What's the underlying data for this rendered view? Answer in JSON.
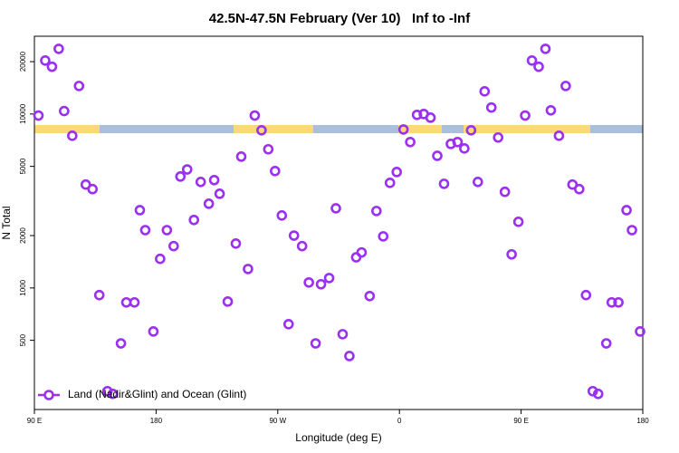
{
  "chart_data": {
    "type": "scatter",
    "title": "42.5N-47.5N February (Ver 10)   Inf to -Inf",
    "xlabel": "Longitude (deg E)",
    "ylabel": "N Total",
    "xlim": [
      90,
      540
    ],
    "xticks": [
      {
        "value": 90,
        "label": "90 E"
      },
      180,
      {
        "value": 270,
        "label": "90 W"
      },
      {
        "value": 360,
        "label": "0"
      },
      {
        "value": 450,
        "label": "90 E"
      },
      {
        "value": 540,
        "label": "180"
      }
    ],
    "ylim": [
      200,
      28000
    ],
    "yticks": [
      500,
      1000,
      2000,
      5000,
      10000,
      20000
    ],
    "log_y": true,
    "legend": "lower left",
    "series": [
      {
        "name": "Land (Nadir&Glint) and Ocean (Glint)",
        "color": "#9b30f0",
        "x": [
          93,
          98,
          103,
          108,
          112,
          118,
          123,
          128,
          133,
          138,
          144,
          148,
          154,
          158,
          164,
          168,
          172,
          178,
          183,
          188,
          193,
          198,
          203,
          208,
          213,
          219,
          223,
          227,
          233,
          239,
          243,
          248,
          253,
          258,
          263,
          268,
          273,
          278,
          282,
          288,
          293,
          298,
          302,
          308,
          313,
          318,
          323,
          328,
          332,
          338,
          343,
          348,
          353,
          358,
          363,
          368,
          373,
          378,
          383,
          388,
          393,
          398,
          403,
          408,
          413,
          418,
          423,
          428,
          433,
          438,
          443,
          448,
          453,
          458,
          463,
          468,
          472,
          478,
          483,
          488,
          493,
          498,
          503,
          507,
          513,
          517,
          522,
          528,
          532,
          538
        ],
        "values": [
          9800,
          20300,
          18700,
          23700,
          10400,
          7500,
          14500,
          3930,
          3700,
          910,
          255,
          246,
          480,
          826,
          826,
          2800,
          2150,
          562,
          1470,
          2150,
          1740,
          4370,
          4800,
          2460,
          4070,
          3050,
          4170,
          3480,
          835,
          1800,
          5690,
          1285,
          9800,
          8060,
          6270,
          4700,
          2610,
          619,
          2000,
          1740,
          1075,
          480,
          1050,
          1140,
          2870,
          542,
          406,
          1500,
          1600,
          898,
          2770,
          1980,
          4020,
          4640,
          8150,
          6900,
          9890,
          10000,
          9530,
          5750,
          3970,
          6730,
          6900,
          6340,
          8060,
          4070,
          13500,
          10900,
          7330,
          3570,
          1560,
          2400,
          9800,
          20300,
          18700,
          23700,
          10500,
          7500,
          14500,
          3930,
          3700,
          910,
          255,
          246,
          480,
          826,
          826,
          2800,
          2150,
          562
        ]
      }
    ]
  }
}
